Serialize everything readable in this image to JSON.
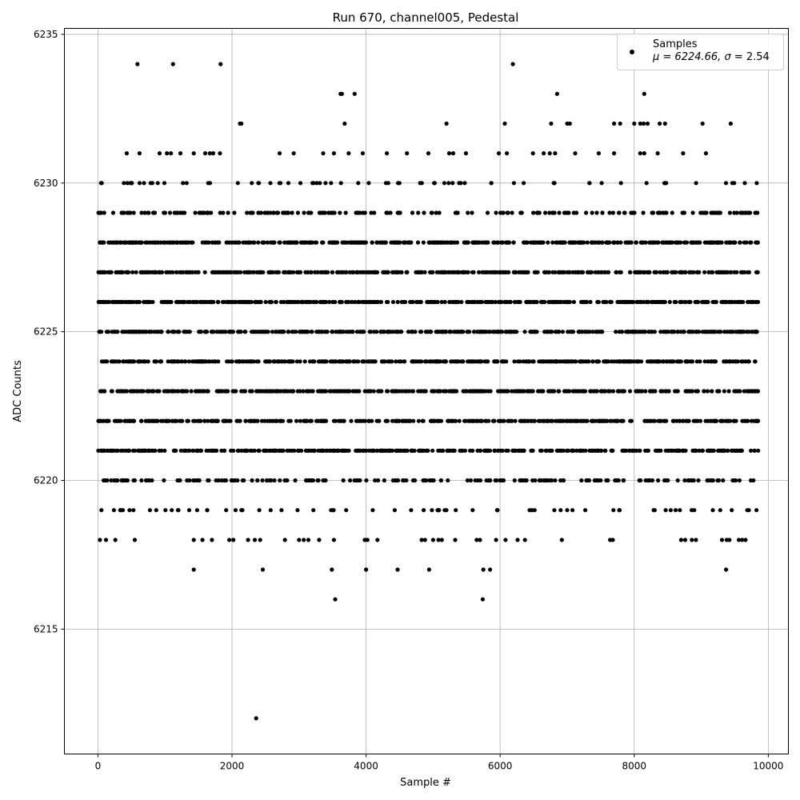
{
  "chart_data": {
    "type": "scatter",
    "title": "Run 670, channel005, Pedestal",
    "xlabel": "Sample #",
    "ylabel": "ADC Counts",
    "xlim": [
      -500,
      10300
    ],
    "ylim": [
      6210.8,
      6235.2
    ],
    "xticks": [
      0,
      2000,
      4000,
      6000,
      8000,
      10000
    ],
    "xtick_labels": [
      "0",
      "2000",
      "4000",
      "6000",
      "8000",
      "10000"
    ],
    "yticks": [
      6215,
      6220,
      6225,
      6230,
      6235
    ],
    "ytick_labels": [
      "6215",
      "6220",
      "6225",
      "6230",
      "6235"
    ],
    "grid": true,
    "marker_color": "#000000",
    "grid_color": "#b0b0b0",
    "legend": {
      "placement": "top-right",
      "series_name": "Samples",
      "stats_prefix": "μ = 6224.66, ",
      "stats_sigma": "σ",
      "stats_suffix": " = 2.54"
    },
    "n_samples": 9850,
    "mean": 6224.66,
    "sigma": 2.54,
    "dense_levels": [
      6221,
      6222,
      6223,
      6224,
      6225,
      6226,
      6227,
      6228
    ],
    "medium_levels": [
      6219,
      6220,
      6229,
      6230
    ],
    "outliers": [
      {
        "x": 590,
        "y": 6234
      },
      {
        "x": 1120,
        "y": 6234
      },
      {
        "x": 1830,
        "y": 6234
      },
      {
        "x": 6190,
        "y": 6234
      },
      {
        "x": 2120,
        "y": 6232
      },
      {
        "x": 2140,
        "y": 6232
      },
      {
        "x": 3620,
        "y": 6233
      },
      {
        "x": 3640,
        "y": 6233
      },
      {
        "x": 3830,
        "y": 6233
      },
      {
        "x": 6850,
        "y": 6233
      },
      {
        "x": 8150,
        "y": 6233
      },
      {
        "x": 3680,
        "y": 6232
      },
      {
        "x": 5200,
        "y": 6232
      },
      {
        "x": 6070,
        "y": 6232
      },
      {
        "x": 6760,
        "y": 6232
      },
      {
        "x": 7000,
        "y": 6232
      },
      {
        "x": 7040,
        "y": 6232
      },
      {
        "x": 7700,
        "y": 6232
      },
      {
        "x": 7790,
        "y": 6232
      },
      {
        "x": 8000,
        "y": 6232
      },
      {
        "x": 8090,
        "y": 6232
      },
      {
        "x": 8140,
        "y": 6232
      },
      {
        "x": 8200,
        "y": 6232
      },
      {
        "x": 8380,
        "y": 6232
      },
      {
        "x": 8460,
        "y": 6232
      },
      {
        "x": 9020,
        "y": 6232
      },
      {
        "x": 9440,
        "y": 6232
      },
      {
        "x": 430,
        "y": 6231
      },
      {
        "x": 620,
        "y": 6231
      },
      {
        "x": 920,
        "y": 6231
      },
      {
        "x": 1030,
        "y": 6231
      },
      {
        "x": 1090,
        "y": 6231
      },
      {
        "x": 1230,
        "y": 6231
      },
      {
        "x": 1430,
        "y": 6231
      },
      {
        "x": 1600,
        "y": 6231
      },
      {
        "x": 1670,
        "y": 6231
      },
      {
        "x": 1720,
        "y": 6231
      },
      {
        "x": 1820,
        "y": 6231
      },
      {
        "x": 2710,
        "y": 6231
      },
      {
        "x": 2920,
        "y": 6231
      },
      {
        "x": 3360,
        "y": 6231
      },
      {
        "x": 3520,
        "y": 6231
      },
      {
        "x": 3740,
        "y": 6231
      },
      {
        "x": 3950,
        "y": 6231
      },
      {
        "x": 4310,
        "y": 6231
      },
      {
        "x": 4610,
        "y": 6231
      },
      {
        "x": 4930,
        "y": 6231
      },
      {
        "x": 5240,
        "y": 6231
      },
      {
        "x": 5300,
        "y": 6231
      },
      {
        "x": 5490,
        "y": 6231
      },
      {
        "x": 5980,
        "y": 6231
      },
      {
        "x": 6100,
        "y": 6231
      },
      {
        "x": 6490,
        "y": 6231
      },
      {
        "x": 6650,
        "y": 6231
      },
      {
        "x": 6740,
        "y": 6231
      },
      {
        "x": 6820,
        "y": 6231
      },
      {
        "x": 7120,
        "y": 6231
      },
      {
        "x": 7470,
        "y": 6231
      },
      {
        "x": 7700,
        "y": 6231
      },
      {
        "x": 8090,
        "y": 6231
      },
      {
        "x": 8150,
        "y": 6231
      },
      {
        "x": 8350,
        "y": 6231
      },
      {
        "x": 8730,
        "y": 6231
      },
      {
        "x": 9070,
        "y": 6231
      },
      {
        "x": 30,
        "y": 6218
      },
      {
        "x": 120,
        "y": 6218
      },
      {
        "x": 260,
        "y": 6218
      },
      {
        "x": 550,
        "y": 6218
      },
      {
        "x": 1430,
        "y": 6218
      },
      {
        "x": 1560,
        "y": 6218
      },
      {
        "x": 1700,
        "y": 6218
      },
      {
        "x": 1960,
        "y": 6218
      },
      {
        "x": 2020,
        "y": 6218
      },
      {
        "x": 2240,
        "y": 6218
      },
      {
        "x": 2340,
        "y": 6218
      },
      {
        "x": 2420,
        "y": 6218
      },
      {
        "x": 2790,
        "y": 6218
      },
      {
        "x": 3000,
        "y": 6218
      },
      {
        "x": 3070,
        "y": 6218
      },
      {
        "x": 3140,
        "y": 6218
      },
      {
        "x": 3300,
        "y": 6218
      },
      {
        "x": 3520,
        "y": 6218
      },
      {
        "x": 3980,
        "y": 6218
      },
      {
        "x": 4020,
        "y": 6218
      },
      {
        "x": 4170,
        "y": 6218
      },
      {
        "x": 4830,
        "y": 6218
      },
      {
        "x": 4880,
        "y": 6218
      },
      {
        "x": 5000,
        "y": 6218
      },
      {
        "x": 5080,
        "y": 6218
      },
      {
        "x": 5130,
        "y": 6218
      },
      {
        "x": 5330,
        "y": 6218
      },
      {
        "x": 5650,
        "y": 6218
      },
      {
        "x": 5700,
        "y": 6218
      },
      {
        "x": 5940,
        "y": 6218
      },
      {
        "x": 6080,
        "y": 6218
      },
      {
        "x": 6260,
        "y": 6218
      },
      {
        "x": 6370,
        "y": 6218
      },
      {
        "x": 6920,
        "y": 6218
      },
      {
        "x": 7640,
        "y": 6218
      },
      {
        "x": 7680,
        "y": 6218
      },
      {
        "x": 8700,
        "y": 6218
      },
      {
        "x": 8760,
        "y": 6218
      },
      {
        "x": 8860,
        "y": 6218
      },
      {
        "x": 8920,
        "y": 6218
      },
      {
        "x": 9310,
        "y": 6218
      },
      {
        "x": 9380,
        "y": 6218
      },
      {
        "x": 9420,
        "y": 6218
      },
      {
        "x": 9560,
        "y": 6218
      },
      {
        "x": 9610,
        "y": 6218
      },
      {
        "x": 9660,
        "y": 6218
      },
      {
        "x": 1430,
        "y": 6217
      },
      {
        "x": 2460,
        "y": 6217
      },
      {
        "x": 3490,
        "y": 6217
      },
      {
        "x": 4000,
        "y": 6217
      },
      {
        "x": 4470,
        "y": 6217
      },
      {
        "x": 4940,
        "y": 6217
      },
      {
        "x": 5750,
        "y": 6217
      },
      {
        "x": 5850,
        "y": 6217
      },
      {
        "x": 9370,
        "y": 6217
      },
      {
        "x": 3540,
        "y": 6216
      },
      {
        "x": 5740,
        "y": 6216
      },
      {
        "x": 2360,
        "y": 6212
      }
    ]
  }
}
